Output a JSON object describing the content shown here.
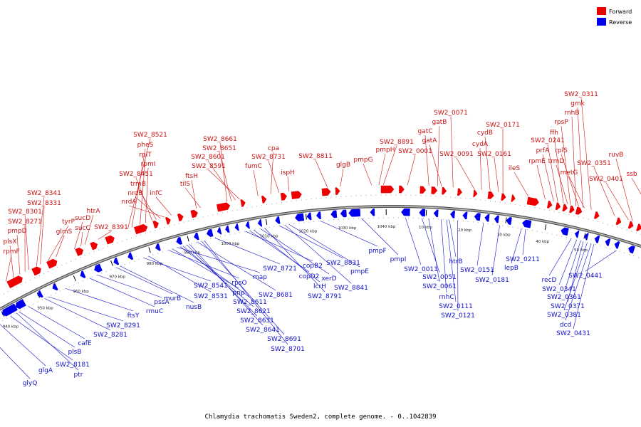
{
  "caption": "Chlamydia trachomatis Sweden2, complete genome. - 0..1042839",
  "legend": {
    "forward": {
      "label": "Forward",
      "color": "#ee0000"
    },
    "reverse": {
      "label": "Reverse",
      "color": "#0000ee"
    }
  },
  "colors": {
    "backbone": "#666666",
    "forward_label": "#cc1111",
    "reverse_label": "#1111cc"
  },
  "ticks": [
    "940 kbp",
    "950 kbp",
    "960 kbp",
    "970 kbp",
    "980 kbp",
    "990 kbp",
    "1000 kbp",
    "1010 kbp",
    "1020 kbp",
    "1030 kbp",
    "1040 kbp",
    "10 kbp",
    "20 kbp",
    "30 kbp",
    "40 kbp",
    "50 kbp"
  ],
  "forward_genes": [
    "SW2_8341",
    "SW2_8331",
    "SW2_8301",
    "SW2_8271",
    "pmpD",
    "plsX",
    "rpmF",
    "tyrP",
    "glmS",
    "sucD",
    "sucC",
    "htrA",
    "SW2_8391",
    "SW2_8521",
    "pheS",
    "rplT",
    "rpmI",
    "SW2_8451",
    "trmB",
    "nrdB",
    "nrdA",
    "infC",
    "ftsH",
    "tilS",
    "SW2_8661",
    "SW2_8651",
    "SW2_8601",
    "SW2_8591",
    "cpa",
    "SW2_8731",
    "fumC",
    "ispH",
    "SW2_8811",
    "glgB",
    "SW2_8891",
    "pmpG",
    "pmpH",
    "SW2_0001",
    "SW2_0071",
    "gatB",
    "gatC",
    "gatA",
    "SW2_0091",
    "SW2_0171",
    "cydB",
    "cydA",
    "SW2_0161",
    "ileS",
    "SW2_0311",
    "gmk",
    "rnhB",
    "rpsP",
    "ffh",
    "SW2_0241",
    "prfA",
    "rplS",
    "trmD",
    "rpmE",
    "metG",
    "SW2_0351",
    "ruvB",
    "SW2_0401",
    "ssb"
  ],
  "reverse_genes": [
    "glyQ",
    "glgA",
    "SW2_8181",
    "ptr",
    "plsB",
    "cafE",
    "SW2_8281",
    "SW2_8291",
    "ftsY",
    "rmuC",
    "pssA",
    "murB",
    "nusB",
    "SW2_8541",
    "SW2_8531",
    "rpsO",
    "pnp",
    "SW2_8611",
    "SW2_8621",
    "SW2_8631",
    "SW2_8641",
    "SW2_8681",
    "SW2_8691",
    "SW2_8701",
    "map",
    "SW2_8721",
    "copB2",
    "copD2",
    "lcrH",
    "xerD",
    "SW2_8791",
    "SW2_8831",
    "SW2_8841",
    "pmpE",
    "pmpF",
    "pmpI",
    "SW2_0011",
    "SW2_0051",
    "SW2_0061",
    "rnhC",
    "SW2_0111",
    "SW2_0121",
    "htrB",
    "SW2_0151",
    "SW2_0181",
    "SW2_0211",
    "lepB",
    "recD",
    "SW2_0341",
    "SW2_0361",
    "SW2_0371",
    "SW2_0381",
    "dcd",
    "SW2_0431",
    "SW2_0441"
  ]
}
